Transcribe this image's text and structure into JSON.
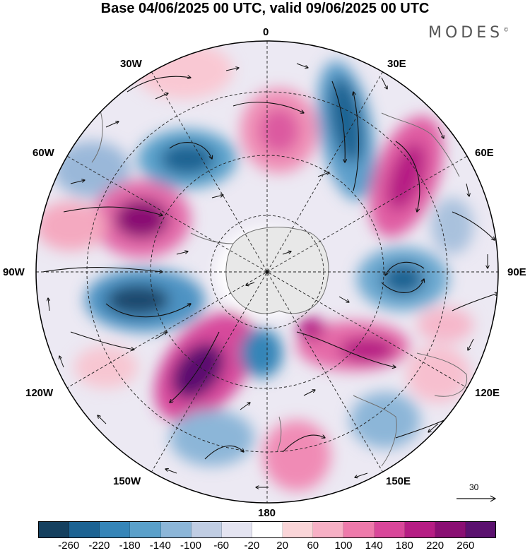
{
  "header": {
    "title": "Base 04/06/2025 00 UTC, valid 09/06/2025 00 UTC",
    "brand": "MODES",
    "brand_mark": "©"
  },
  "map": {
    "projection": "south-polar-stereographic",
    "longitude_labels": {
      "top": "0",
      "bottom": "180",
      "left": "90W",
      "right": "90E",
      "upper_left_1": "30W",
      "upper_left_2": "60W",
      "upper_right_1": "30E",
      "upper_right_2": "60E",
      "lower_left_1": "120W",
      "lower_left_2": "150W",
      "lower_right_1": "120E",
      "lower_right_2": "150E"
    },
    "reference_vector_label": "30",
    "colors": {
      "deep_blue": "#1a4a6e",
      "deep_purple": "#5b116f",
      "land_outline": "#6f6f6f",
      "antarctica": "#e9e9e9"
    }
  },
  "colorbar": {
    "tick_labels": [
      "-260",
      "-220",
      "-180",
      "-140",
      "-100",
      "-60",
      "-20",
      "20",
      "60",
      "100",
      "140",
      "180",
      "220",
      "260"
    ],
    "colors": [
      "#15405f",
      "#1c6393",
      "#3585b8",
      "#5aa0ca",
      "#8cb6d8",
      "#c0cde3",
      "#e4e4f1",
      "#ffffff",
      "#fad5d8",
      "#f7b0c5",
      "#ee7aab",
      "#d9479a",
      "#b61d84",
      "#8a0f73",
      "#5b116f"
    ]
  }
}
